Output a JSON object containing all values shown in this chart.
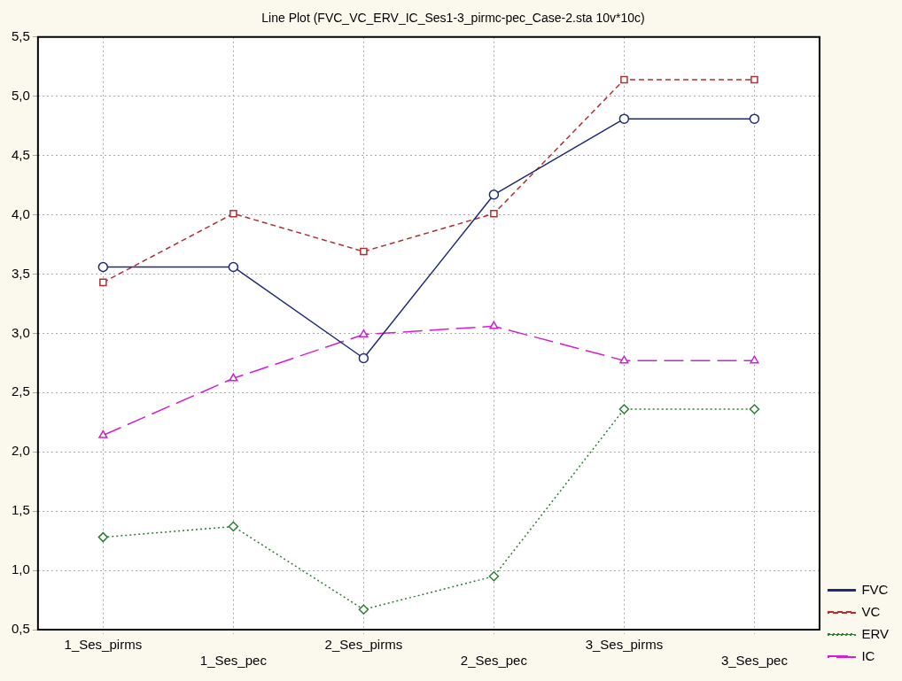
{
  "chart_data": {
    "type": "line",
    "title": "Line Plot (FVC_VC_ERV_IC_Ses1-3_pirmc-pec_Case-2.sta 10v*10c)",
    "categories": [
      "1_Ses_pirms",
      "1_Ses_pec",
      "2_Ses_pirms",
      "2_Ses_pec",
      "3_Ses_pirms",
      "3_Ses_pec"
    ],
    "series": [
      {
        "name": "FVC",
        "color": "#1f2a7a",
        "marker": "circle",
        "line_style": "solid",
        "values": [
          3.56,
          3.56,
          2.79,
          4.17,
          4.81,
          4.81
        ]
      },
      {
        "name": "VC",
        "color": "#b03030",
        "marker": "square",
        "line_style": "dashed",
        "values": [
          3.43,
          4.01,
          3.69,
          4.01,
          5.14,
          5.14
        ]
      },
      {
        "name": "ERV",
        "color": "#2e7d32",
        "marker": "diamond",
        "line_style": "dotted",
        "values": [
          1.28,
          1.37,
          0.67,
          0.95,
          2.36,
          2.36
        ]
      },
      {
        "name": "IC",
        "color": "#d020d0",
        "marker": "triangle",
        "line_style": "dashed",
        "values": [
          2.14,
          2.62,
          2.99,
          3.06,
          2.77,
          2.77
        ]
      }
    ],
    "ylim": [
      0.5,
      5.5
    ],
    "yticks": [
      {
        "value": 0.5,
        "label": "0,5"
      },
      {
        "value": 1,
        "label": "1,0"
      },
      {
        "value": 1.5,
        "label": "1,5"
      },
      {
        "value": 2,
        "label": "2,0"
      },
      {
        "value": 2.5,
        "label": "2,5"
      },
      {
        "value": 3,
        "label": "3,0"
      },
      {
        "value": 3.5,
        "label": "3,5"
      },
      {
        "value": 4,
        "label": "4,0"
      },
      {
        "value": 4.5,
        "label": "4,5"
      },
      {
        "value": 5,
        "label": "5,0"
      },
      {
        "value": 5.5,
        "label": "5,5"
      }
    ],
    "grid": true,
    "legend": "bottom right"
  }
}
